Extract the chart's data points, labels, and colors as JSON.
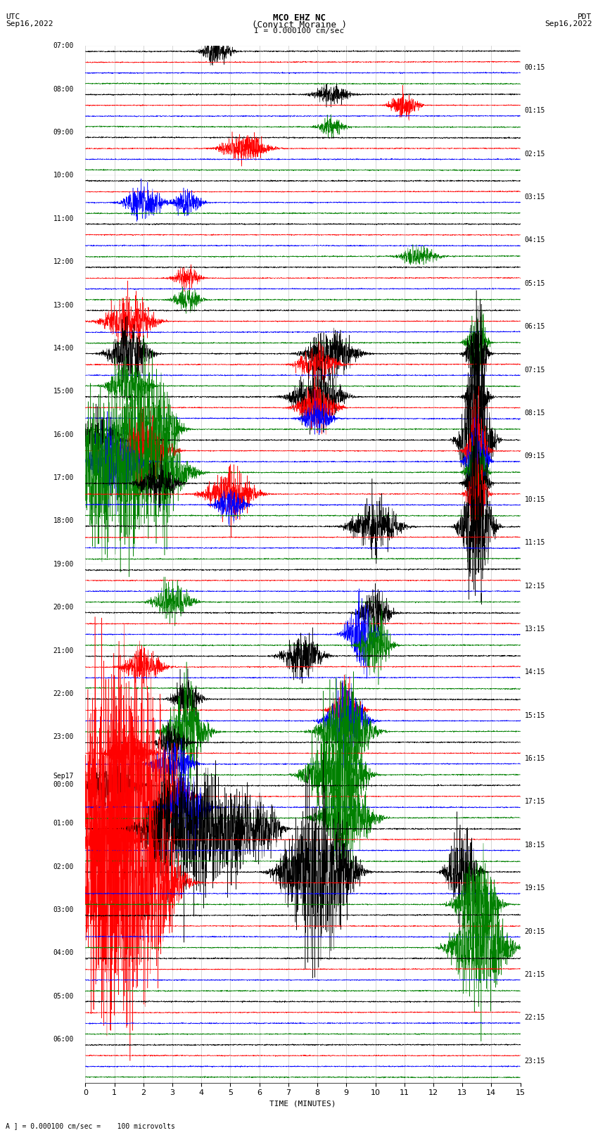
{
  "title_line1": "MCO EHZ NC",
  "title_line2": "(Convict Moraine )",
  "title_line3": "I = 0.000100 cm/sec",
  "left_label_line1": "UTC",
  "left_label_line2": "Sep16,2022",
  "right_label_line1": "PDT",
  "right_label_line2": "Sep16,2022",
  "bottom_note": "A ] = 0.000100 cm/sec =    100 microvolts",
  "utc_times": [
    "07:00",
    "08:00",
    "09:00",
    "10:00",
    "11:00",
    "12:00",
    "13:00",
    "14:00",
    "15:00",
    "16:00",
    "17:00",
    "18:00",
    "19:00",
    "20:00",
    "21:00",
    "22:00",
    "23:00",
    "Sep17\n00:00",
    "01:00",
    "02:00",
    "03:00",
    "04:00",
    "05:00",
    "06:00"
  ],
  "pdt_times": [
    "00:15",
    "01:15",
    "02:15",
    "03:15",
    "04:15",
    "05:15",
    "06:15",
    "07:15",
    "08:15",
    "09:15",
    "10:15",
    "11:15",
    "12:15",
    "13:15",
    "14:15",
    "15:15",
    "16:15",
    "17:15",
    "18:15",
    "19:15",
    "20:15",
    "21:15",
    "22:15",
    "23:15"
  ],
  "trace_colors_cycle": [
    "black",
    "red",
    "blue",
    "green"
  ],
  "bg_color": "white",
  "total_minutes": 15,
  "x_ticks": [
    0,
    1,
    2,
    3,
    4,
    5,
    6,
    7,
    8,
    9,
    10,
    11,
    12,
    13,
    14,
    15
  ],
  "x_label": "TIME (MINUTES)",
  "n_hours": 24,
  "n_sub": 4,
  "base_noise": 0.06,
  "fig_width": 8.5,
  "fig_height": 16.13,
  "dpi": 100
}
